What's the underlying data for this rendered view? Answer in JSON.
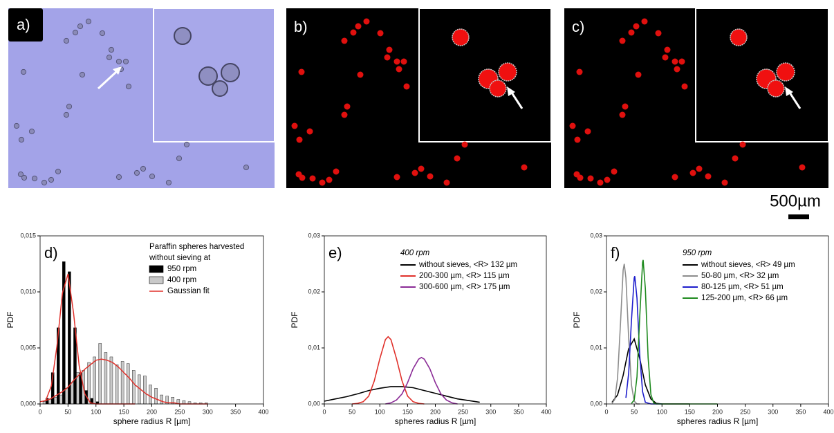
{
  "panels": [
    {
      "label": "a)"
    },
    {
      "label": "b)"
    },
    {
      "label": "c)"
    }
  ],
  "scale_bar": "500µm",
  "chart_data": [
    {
      "type": "histogram",
      "panel_label": "d)",
      "xlabel": "sphere radius R [µm]",
      "ylabel": "PDF",
      "legend_title": [
        "Paraffin spheres harvested",
        "without sieving at"
      ],
      "bins": [
        0,
        10,
        20,
        30,
        40,
        50,
        60,
        70,
        80,
        90,
        100,
        110,
        120,
        130,
        140,
        150,
        160,
        170,
        180,
        190,
        200,
        210,
        220,
        230,
        240,
        250,
        260,
        270,
        280,
        290,
        300
      ],
      "series": [
        {
          "name": "950 rpm",
          "color": "#000000",
          "values": [
            0,
            0.0005,
            0.0028,
            0.0068,
            0.0127,
            0.0118,
            0.0068,
            0.0028,
            0.0012,
            0.0005,
            0.0002,
            0,
            0,
            0,
            0,
            0,
            0,
            0,
            0,
            0,
            0,
            0,
            0,
            0,
            0,
            0,
            0,
            0,
            0,
            0
          ]
        },
        {
          "name": "400 rpm",
          "color": "#c9c9c9",
          "values": [
            0.0002,
            0.0004,
            0.0006,
            0.0008,
            0.0014,
            0.0019,
            0.0028,
            0.003,
            0.0037,
            0.0042,
            0.0054,
            0.0046,
            0.0042,
            0.0035,
            0.0038,
            0.0036,
            0.003,
            0.0026,
            0.0025,
            0.0017,
            0.0014,
            0.0008,
            0.0007,
            0.0006,
            0.0004,
            0.0003,
            0.0002,
            0.0001,
            0.0001,
            0.0001
          ]
        }
      ],
      "fit": {
        "name": "Gaussian fit",
        "color": "#e0302a",
        "lines": [
          {
            "x": [
              10,
              20,
              30,
              40,
              50,
              60,
              70,
              80,
              90,
              100,
              110,
              120,
              130,
              140,
              150,
              160,
              170
            ],
            "values": [
              0.0003,
              0.0016,
              0.0051,
              0.0099,
              0.0116,
              0.0081,
              0.0034,
              0.0009,
              0.0001,
              0,
              0,
              0,
              0,
              0,
              0,
              0,
              0
            ]
          },
          {
            "x": [
              0,
              10,
              20,
              30,
              40,
              50,
              60,
              70,
              80,
              90,
              100,
              110,
              120,
              130,
              140,
              150,
              160,
              170,
              180,
              190,
              200,
              210,
              220,
              230,
              240,
              250,
              260,
              270,
              280,
              290,
              300
            ],
            "values": [
              0.0002,
              0.0003,
              0.0005,
              0.0008,
              0.0011,
              0.0015,
              0.0021,
              0.0026,
              0.0031,
              0.0035,
              0.0039,
              0.004,
              0.0039,
              0.0037,
              0.0033,
              0.0028,
              0.0023,
              0.0017,
              0.0013,
              0.0009,
              0.0006,
              0.0004,
              0.0002,
              0.0001,
              0.0001,
              0,
              0,
              0,
              0,
              0,
              0
            ]
          }
        ]
      },
      "xlim": [
        0,
        400
      ],
      "xticks": [
        0,
        50,
        100,
        150,
        200,
        250,
        300,
        350,
        400
      ],
      "ylim": [
        0,
        0.015
      ],
      "yticks": [
        {
          "value": 0,
          "label": "0,000"
        },
        {
          "value": 0.005,
          "label": "0,005"
        },
        {
          "value": 0.01,
          "label": "0,010"
        },
        {
          "value": 0.015,
          "label": "0,015"
        }
      ]
    },
    {
      "type": "line",
      "panel_label": "e)",
      "annotation": "400 rpm",
      "xlabel": "spheres radius R [µm]",
      "ylabel": "PDF",
      "series": [
        {
          "name": "without sieves, <R> 132 µm",
          "color": "#000000",
          "x": [
            0,
            20,
            40,
            60,
            80,
            100,
            120,
            140,
            160,
            180,
            200,
            220,
            240,
            260,
            280
          ],
          "values": [
            0.0005,
            0.0009,
            0.0013,
            0.0018,
            0.0024,
            0.0028,
            0.0031,
            0.0031,
            0.0029,
            0.0024,
            0.0019,
            0.0014,
            0.0009,
            0.0006,
            0.0003
          ]
        },
        {
          "name": "200-300 µm, <R> 115 µm",
          "color": "#e0302a",
          "x": [
            50,
            60,
            70,
            80,
            90,
            100,
            110,
            115,
            120,
            130,
            140,
            150,
            160,
            170,
            180
          ],
          "values": [
            0,
            0.0001,
            0.0004,
            0.0014,
            0.0041,
            0.0081,
            0.0115,
            0.012,
            0.0115,
            0.0081,
            0.0041,
            0.0014,
            0.0004,
            0.0001,
            0
          ]
        },
        {
          "name": "300-600 µm, <R>  175 µm",
          "color": "#8a2a96",
          "x": [
            110,
            120,
            130,
            140,
            150,
            160,
            170,
            175,
            180,
            190,
            200,
            210,
            220,
            230,
            240
          ],
          "values": [
            0,
            0.0002,
            0.0007,
            0.0018,
            0.0038,
            0.0063,
            0.008,
            0.0083,
            0.008,
            0.0063,
            0.0038,
            0.0018,
            0.0007,
            0.0002,
            0
          ]
        }
      ],
      "xlim": [
        0,
        400
      ],
      "xticks": [
        0,
        50,
        100,
        150,
        200,
        250,
        300,
        350,
        400
      ],
      "ylim": [
        0,
        0.03
      ],
      "yticks": [
        {
          "value": 0,
          "label": "0,00"
        },
        {
          "value": 0.01,
          "label": "0,01"
        },
        {
          "value": 0.02,
          "label": "0,02"
        },
        {
          "value": 0.03,
          "label": "0,03"
        }
      ]
    },
    {
      "type": "line",
      "panel_label": "f)",
      "annotation": "950 rpm",
      "xlabel": "spheres radius R [µm]",
      "ylabel": "PDF",
      "series": [
        {
          "name": "without sieves, <R> 49 µm",
          "color": "#000000",
          "x": [
            10,
            20,
            30,
            40,
            50,
            60,
            70,
            80,
            90,
            100,
            150
          ],
          "values": [
            0.0003,
            0.0016,
            0.0051,
            0.0099,
            0.0116,
            0.0081,
            0.0034,
            0.0009,
            0.0001,
            0,
            0
          ]
        },
        {
          "name": "50-80 µm, <R> 32 µm",
          "color": "#8c8c8c",
          "x": [
            10,
            15,
            20,
            25,
            30,
            32,
            35,
            40,
            45,
            50,
            55,
            60
          ],
          "values": [
            0.0001,
            0.0008,
            0.0046,
            0.014,
            0.0239,
            0.025,
            0.0225,
            0.0117,
            0.0034,
            0.0005,
            0,
            0
          ]
        },
        {
          "name": "80-125 µm, <R> 51 µm",
          "color": "#1c1ccc",
          "x": [
            35,
            40,
            45,
            50,
            51,
            55,
            60,
            65,
            70,
            80,
            100
          ],
          "values": [
            0.0011,
            0.0055,
            0.0149,
            0.0225,
            0.0228,
            0.0189,
            0.0087,
            0.0022,
            0.0003,
            0,
            0
          ]
        },
        {
          "name": "125-200 µm, <R> 66 µm",
          "color": "#1e8a1e",
          "x": [
            45,
            50,
            55,
            60,
            65,
            66,
            70,
            75,
            80,
            85,
            90,
            200
          ],
          "values": [
            0.0001,
            0.0007,
            0.0048,
            0.0156,
            0.0253,
            0.0257,
            0.0206,
            0.0083,
            0.0017,
            0.0002,
            0,
            0
          ]
        }
      ],
      "xlim": [
        0,
        400
      ],
      "xticks": [
        0,
        50,
        100,
        150,
        200,
        250,
        300,
        350,
        400
      ],
      "ylim": [
        0,
        0.03
      ],
      "yticks": [
        {
          "value": 0,
          "label": "0,00"
        },
        {
          "value": 0.01,
          "label": "0,01"
        },
        {
          "value": 0.02,
          "label": "0,02"
        },
        {
          "value": 0.03,
          "label": "0,03"
        }
      ]
    }
  ]
}
